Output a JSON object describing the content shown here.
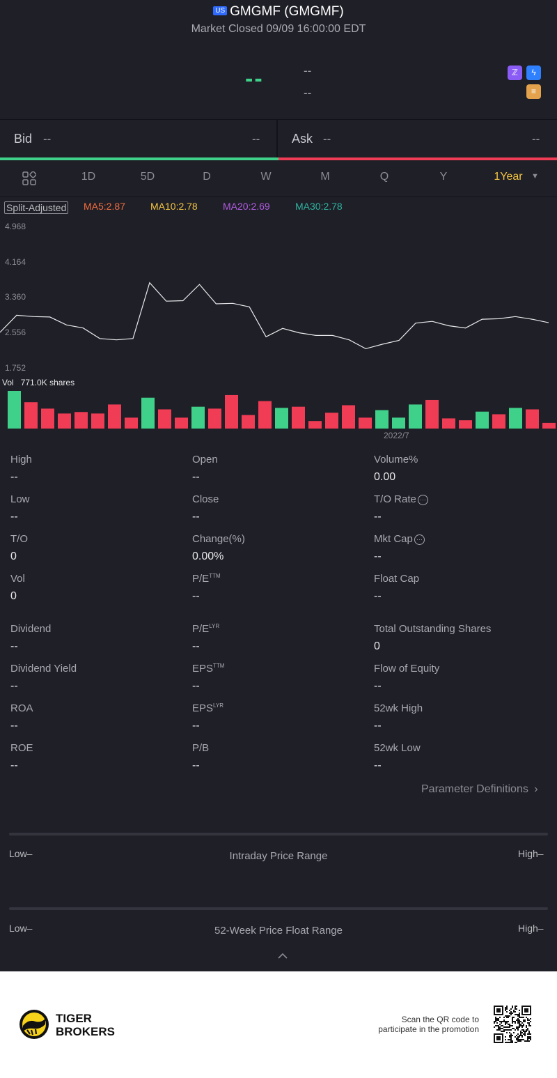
{
  "header": {
    "market_badge": "US",
    "title": "GMGMF (GMGMF)",
    "status": "Market Closed 09/09 16:00:00 EDT",
    "price": "--",
    "change": "--",
    "change_pct": "--"
  },
  "quote": {
    "bid_label": "Bid",
    "bid_price": "--",
    "bid_size": "--",
    "ask_label": "Ask",
    "ask_price": "--",
    "ask_size": "--"
  },
  "tabs": [
    "1D",
    "5D",
    "D",
    "W",
    "M",
    "Q",
    "Y"
  ],
  "active_tab": "1Year",
  "chart_meta": {
    "split_label": "Split-Adjusted",
    "ma5": "MA5:2.87",
    "ma10": "MA10:2.78",
    "ma20": "MA20:2.69",
    "ma30": "MA30:2.78",
    "vol_label": "Vol",
    "vol_value": "771.0K shares",
    "x_tick": "2022/7",
    "colors": {
      "ma5": "#f26d3d",
      "ma10": "#f4c542",
      "ma20": "#b05ce0",
      "ma30": "#2fb3a0",
      "up": "#3fd08a",
      "down": "#f03c54"
    }
  },
  "chart_data": {
    "type": "line",
    "yticks": [
      "4.968",
      "4.164",
      "3.360",
      "2.556",
      "1.752"
    ],
    "ylim": [
      1.752,
      4.968
    ],
    "price": [
      2.56,
      2.95,
      2.92,
      2.91,
      2.73,
      2.66,
      2.42,
      2.39,
      2.42,
      3.69,
      3.27,
      3.28,
      3.65,
      3.21,
      3.22,
      3.14,
      2.46,
      2.65,
      2.55,
      2.49,
      2.49,
      2.39,
      2.19,
      2.29,
      2.38,
      2.77,
      2.81,
      2.71,
      2.66,
      2.86,
      2.87,
      2.92,
      2.86,
      2.78
    ],
    "volume_bars": [
      {
        "v": 1.0,
        "dir": "up"
      },
      {
        "v": 0.7,
        "dir": "down"
      },
      {
        "v": 0.53,
        "dir": "down"
      },
      {
        "v": 0.4,
        "dir": "down"
      },
      {
        "v": 0.44,
        "dir": "down"
      },
      {
        "v": 0.4,
        "dir": "down"
      },
      {
        "v": 0.64,
        "dir": "down"
      },
      {
        "v": 0.29,
        "dir": "down"
      },
      {
        "v": 0.82,
        "dir": "up"
      },
      {
        "v": 0.51,
        "dir": "down"
      },
      {
        "v": 0.29,
        "dir": "down"
      },
      {
        "v": 0.58,
        "dir": "up"
      },
      {
        "v": 0.53,
        "dir": "down"
      },
      {
        "v": 0.89,
        "dir": "down"
      },
      {
        "v": 0.36,
        "dir": "down"
      },
      {
        "v": 0.73,
        "dir": "down"
      },
      {
        "v": 0.55,
        "dir": "up"
      },
      {
        "v": 0.58,
        "dir": "down"
      },
      {
        "v": 0.2,
        "dir": "down"
      },
      {
        "v": 0.42,
        "dir": "down"
      },
      {
        "v": 0.62,
        "dir": "down"
      },
      {
        "v": 0.29,
        "dir": "down"
      },
      {
        "v": 0.49,
        "dir": "up"
      },
      {
        "v": 0.29,
        "dir": "up"
      },
      {
        "v": 0.64,
        "dir": "up"
      },
      {
        "v": 0.76,
        "dir": "down"
      },
      {
        "v": 0.27,
        "dir": "down"
      },
      {
        "v": 0.22,
        "dir": "down"
      },
      {
        "v": 0.45,
        "dir": "up"
      },
      {
        "v": 0.38,
        "dir": "down"
      },
      {
        "v": 0.55,
        "dir": "up"
      },
      {
        "v": 0.51,
        "dir": "down"
      },
      {
        "v": 0.15,
        "dir": "down"
      }
    ]
  },
  "stats": {
    "high_label": "High",
    "high": "--",
    "open_label": "Open",
    "open": "--",
    "volpct_label": "Volume%",
    "volpct": "0.00",
    "low_label": "Low",
    "low": "--",
    "close_label": "Close",
    "close": "--",
    "to_rate_label": "T/O Rate",
    "to_rate": "--",
    "to_label": "T/O",
    "to": "0",
    "change_label": "Change(%)",
    "change": "0.00%",
    "mktcap_label": "Mkt Cap",
    "mktcap": "--",
    "vol_label": "Vol",
    "vol": "0",
    "pe_ttm_label": "P/E",
    "pe_ttm_sup": "TTM",
    "pe_ttm": "--",
    "floatcap_label": "Float Cap",
    "floatcap": "--",
    "dividend_label": "Dividend",
    "dividend": "--",
    "pe_lyr_label": "P/E",
    "pe_lyr_sup": "LYR",
    "pe_lyr": "--",
    "tos_label": "Total Outstanding Shares",
    "tos": "0",
    "divyield_label": "Dividend Yield",
    "divyield": "--",
    "eps_ttm_label": "EPS",
    "eps_ttm_sup": "TTM",
    "eps_ttm": "--",
    "foe_label": "Flow of Equity",
    "foe": "--",
    "roa_label": "ROA",
    "roa": "--",
    "eps_lyr_label": "EPS",
    "eps_lyr_sup": "LYR",
    "eps_lyr": "--",
    "wkhigh_label": "52wk High",
    "wkhigh": "--",
    "roe_label": "ROE",
    "roe": "--",
    "pb_label": "P/B",
    "pb": "--",
    "wklow_label": "52wk Low",
    "wklow": "--",
    "param_link": "Parameter Definitions"
  },
  "ranges": {
    "intraday_title": "Intraday Price Range",
    "week52_title": "52-Week Price Float Range",
    "low_label": "Low–",
    "high_label": "High–"
  },
  "footer": {
    "brand_line1": "TIGER",
    "brand_line2": "BROKERS",
    "promo_line1": "Scan the QR code to",
    "promo_line2": "participate in the promotion"
  }
}
